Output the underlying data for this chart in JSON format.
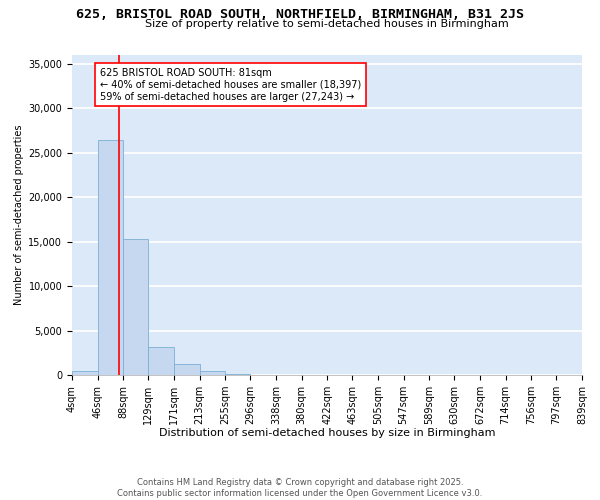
{
  "title1": "625, BRISTOL ROAD SOUTH, NORTHFIELD, BIRMINGHAM, B31 2JS",
  "title2": "Size of property relative to semi-detached houses in Birmingham",
  "xlabel": "Distribution of semi-detached houses by size in Birmingham",
  "ylabel": "Number of semi-detached properties",
  "bin_edges": [
    4,
    46,
    88,
    129,
    171,
    213,
    255,
    296,
    338,
    380,
    422,
    463,
    505,
    547,
    589,
    630,
    672,
    714,
    756,
    797,
    839
  ],
  "bar_heights": [
    500,
    26400,
    15300,
    3200,
    1200,
    400,
    80,
    0,
    0,
    0,
    0,
    0,
    0,
    0,
    0,
    0,
    0,
    0,
    0,
    0
  ],
  "bar_color": "#c5d8f0",
  "bar_edge_color": "#7bafd4",
  "bar_alpha": 0.85,
  "vline_x": 81,
  "vline_color": "red",
  "vline_linewidth": 1.2,
  "annotation_text": "625 BRISTOL ROAD SOUTH: 81sqm\n← 40% of semi-detached houses are smaller (18,397)\n59% of semi-detached houses are larger (27,243) →",
  "ylim": [
    0,
    36000
  ],
  "yticks": [
    0,
    5000,
    10000,
    15000,
    20000,
    25000,
    30000,
    35000
  ],
  "bg_color": "#dce9f8",
  "grid_color": "white",
  "footer": "Contains HM Land Registry data © Crown copyright and database right 2025.\nContains public sector information licensed under the Open Government Licence v3.0.",
  "title1_fontsize": 9.5,
  "title2_fontsize": 8,
  "xlabel_fontsize": 8,
  "ylabel_fontsize": 7,
  "tick_fontsize": 7,
  "annotation_fontsize": 7,
  "footer_fontsize": 6
}
